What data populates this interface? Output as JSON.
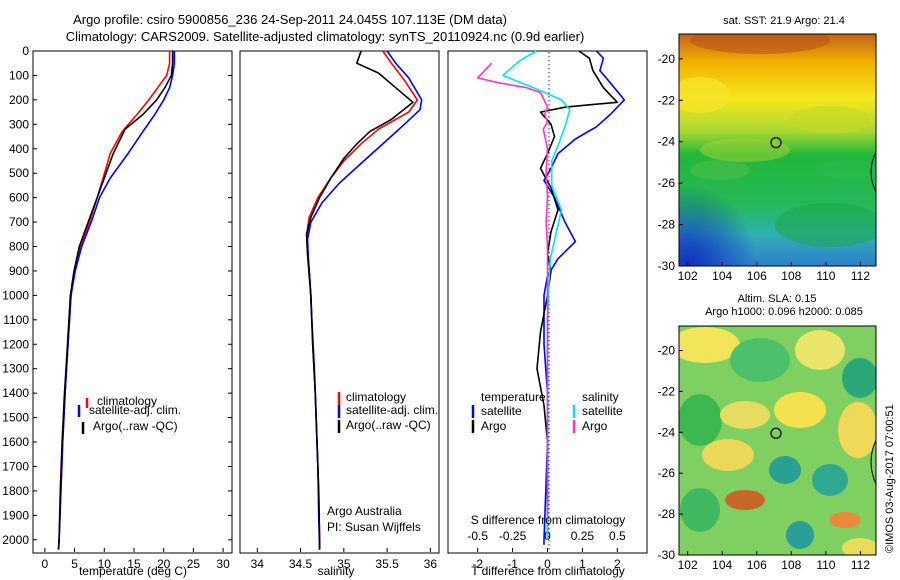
{
  "title": {
    "line1": "Argo profile: csiro 5900856_236 24-Sep-2011 24.045S 107.113E (DM data)",
    "line2": "Climatology: CARS2009. Satellite-adjusted climatology: synTS_20110924.nc (0.9d earlier)"
  },
  "colors": {
    "climatology": "#ff0000",
    "satellite": "#0000ff",
    "argo": "#000000",
    "salinity_sat": "#00e5ee",
    "salinity_argo": "#ff33cc"
  },
  "pressure_ticks": [
    "0",
    "100",
    "200",
    "300",
    "400",
    "500",
    "600",
    "700",
    "800",
    "900",
    "1000",
    "1100",
    "1200",
    "1300",
    "1400",
    "1500",
    "1600",
    "1700",
    "1800",
    "1900",
    "2000"
  ],
  "chart_data": [
    {
      "type": "line",
      "id": "temperature",
      "xlabel": "temperature (deg C)",
      "xlim": [
        -2,
        31.5
      ],
      "ylim": [
        2050,
        0
      ],
      "xticks": [
        "0",
        "5",
        "10",
        "15",
        "20",
        "25",
        "30"
      ],
      "legend": [
        "climatology",
        "satellite-adj. clim.",
        "Argo(..raw -QC)"
      ],
      "series": [
        {
          "name": "climatology",
          "color": "#ff0000",
          "points": [
            [
              21.0,
              0
            ],
            [
              21.0,
              50
            ],
            [
              20.5,
              100
            ],
            [
              19.0,
              150
            ],
            [
              17.5,
              200
            ],
            [
              15.5,
              260
            ],
            [
              13.0,
              330
            ],
            [
              11.0,
              420
            ],
            [
              9.8,
              520
            ],
            [
              8.8,
              600
            ],
            [
              7.5,
              700
            ],
            [
              6.0,
              800
            ],
            [
              5.0,
              900
            ],
            [
              4.4,
              1000
            ],
            [
              3.9,
              1200
            ],
            [
              3.4,
              1400
            ],
            [
              3.0,
              1600
            ],
            [
              2.7,
              1800
            ],
            [
              2.4,
              2000
            ],
            [
              2.3,
              2040
            ]
          ]
        },
        {
          "name": "satellite-adj. clim.",
          "color": "#0000ff",
          "points": [
            [
              21.8,
              0
            ],
            [
              21.8,
              50
            ],
            [
              21.5,
              100
            ],
            [
              21.0,
              150
            ],
            [
              20.0,
              200
            ],
            [
              18.5,
              260
            ],
            [
              16.5,
              330
            ],
            [
              14.0,
              420
            ],
            [
              11.0,
              520
            ],
            [
              9.2,
              600
            ],
            [
              7.8,
              700
            ],
            [
              6.2,
              800
            ],
            [
              5.1,
              900
            ],
            [
              4.4,
              1000
            ],
            [
              3.9,
              1200
            ],
            [
              3.4,
              1400
            ],
            [
              3.0,
              1600
            ],
            [
              2.7,
              1800
            ],
            [
              2.4,
              2000
            ],
            [
              2.3,
              2040
            ]
          ]
        },
        {
          "name": "Argo(..raw -QC)",
          "color": "#000000",
          "points": [
            [
              21.5,
              0
            ],
            [
              21.5,
              50
            ],
            [
              21.3,
              100
            ],
            [
              20.2,
              150
            ],
            [
              18.8,
              200
            ],
            [
              16.5,
              260
            ],
            [
              13.5,
              320
            ],
            [
              11.5,
              420
            ],
            [
              10.0,
              520
            ],
            [
              8.8,
              600
            ],
            [
              7.3,
              700
            ],
            [
              5.8,
              800
            ],
            [
              4.9,
              900
            ],
            [
              4.3,
              1000
            ],
            [
              3.8,
              1200
            ],
            [
              3.3,
              1400
            ],
            [
              2.9,
              1600
            ],
            [
              2.6,
              1800
            ],
            [
              2.4,
              2000
            ],
            [
              2.3,
              2040
            ]
          ]
        }
      ]
    },
    {
      "type": "line",
      "id": "salinity",
      "xlabel": "salinity",
      "xlim": [
        33.8,
        36.1
      ],
      "ylim": [
        2050,
        0
      ],
      "xticks": [
        "34",
        "34.5",
        "35",
        "35.5",
        "36"
      ],
      "legend": [
        "climatology",
        "satellite-adj. clim.",
        "Argo(..raw -QC)"
      ],
      "annotation": [
        "Argo Australia",
        "PI: Susan Wijffels"
      ],
      "series": [
        {
          "name": "climatology",
          "color": "#ff0000",
          "points": [
            [
              35.45,
              0
            ],
            [
              35.55,
              50
            ],
            [
              35.7,
              120
            ],
            [
              35.85,
              200
            ],
            [
              35.75,
              250
            ],
            [
              35.6,
              280
            ],
            [
              35.4,
              320
            ],
            [
              35.2,
              380
            ],
            [
              35.0,
              450
            ],
            [
              34.85,
              520
            ],
            [
              34.7,
              600
            ],
            [
              34.6,
              680
            ],
            [
              34.57,
              750
            ],
            [
              34.58,
              820
            ],
            [
              34.6,
              900
            ],
            [
              34.62,
              1000
            ],
            [
              34.64,
              1200
            ],
            [
              34.67,
              1400
            ],
            [
              34.69,
              1600
            ],
            [
              34.71,
              1800
            ],
            [
              34.72,
              2000
            ],
            [
              34.72,
              2040
            ]
          ]
        },
        {
          "name": "satellite-adj. clim.",
          "color": "#0000ff",
          "points": [
            [
              35.5,
              0
            ],
            [
              35.6,
              50
            ],
            [
              35.75,
              110
            ],
            [
              35.9,
              200
            ],
            [
              35.88,
              240
            ],
            [
              35.7,
              300
            ],
            [
              35.45,
              380
            ],
            [
              35.2,
              460
            ],
            [
              34.95,
              540
            ],
            [
              34.75,
              620
            ],
            [
              34.62,
              700
            ],
            [
              34.58,
              770
            ],
            [
              34.59,
              850
            ],
            [
              34.61,
              950
            ],
            [
              34.63,
              1100
            ],
            [
              34.66,
              1300
            ],
            [
              34.68,
              1500
            ],
            [
              34.7,
              1700
            ],
            [
              34.71,
              1900
            ],
            [
              34.72,
              2040
            ]
          ]
        },
        {
          "name": "Argo(..raw -QC)",
          "color": "#000000",
          "points": [
            [
              35.2,
              0
            ],
            [
              35.15,
              50
            ],
            [
              35.4,
              90
            ],
            [
              35.6,
              150
            ],
            [
              35.8,
              210
            ],
            [
              35.55,
              280
            ],
            [
              35.3,
              330
            ],
            [
              35.15,
              380
            ],
            [
              35.0,
              440
            ],
            [
              34.85,
              520
            ],
            [
              34.72,
              600
            ],
            [
              34.62,
              680
            ],
            [
              34.57,
              750
            ],
            [
              34.58,
              830
            ],
            [
              34.6,
              920
            ],
            [
              34.62,
              1000
            ],
            [
              34.64,
              1200
            ],
            [
              34.67,
              1400
            ],
            [
              34.69,
              1600
            ],
            [
              34.71,
              1800
            ],
            [
              34.72,
              2000
            ],
            [
              34.72,
              2040
            ]
          ]
        }
      ]
    },
    {
      "type": "line",
      "id": "difference",
      "xlabel": "T difference from climatology",
      "xlabel_top": "S difference from climatology",
      "xlim": [
        -2.85,
        2.85
      ],
      "ylim": [
        2050,
        0
      ],
      "xticks": [
        "-2",
        "-1",
        "0",
        "1",
        "2"
      ],
      "xticks_top": [
        "-0.5",
        "-0.25",
        "0",
        "0.25",
        "0.5"
      ],
      "legend_title_left": "temperature",
      "legend_title_right": "salinity",
      "legend_left": [
        "satellite",
        "Argo"
      ],
      "legend_right": [
        "satellite",
        "Argo"
      ],
      "series": [
        {
          "name": "temperature satellite",
          "color": "#0000ff",
          "points": [
            [
              1.4,
              0
            ],
            [
              1.6,
              30
            ],
            [
              1.5,
              80
            ],
            [
              1.8,
              130
            ],
            [
              2.2,
              200
            ],
            [
              1.8,
              260
            ],
            [
              1.4,
              310
            ],
            [
              0.8,
              360
            ],
            [
              0.3,
              420
            ],
            [
              0.1,
              480
            ],
            [
              -0.1,
              530
            ],
            [
              0.2,
              600
            ],
            [
              0.5,
              700
            ],
            [
              0.8,
              780
            ],
            [
              0.3,
              850
            ],
            [
              0.0,
              920
            ],
            [
              -0.1,
              1000
            ],
            [
              -0.1,
              1200
            ],
            [
              0.0,
              1400
            ],
            [
              0.0,
              1600
            ],
            [
              -0.05,
              1800
            ],
            [
              -0.1,
              2000
            ],
            [
              -0.1,
              2020
            ]
          ]
        },
        {
          "name": "temperature Argo",
          "color": "#000000",
          "points": [
            [
              0.9,
              0
            ],
            [
              1.2,
              30
            ],
            [
              1.3,
              80
            ],
            [
              1.6,
              150
            ],
            [
              2.0,
              210
            ],
            [
              1.2,
              220
            ],
            [
              0.5,
              230
            ],
            [
              -0.2,
              250
            ],
            [
              0.1,
              300
            ],
            [
              0.2,
              350
            ],
            [
              0.0,
              420
            ],
            [
              -0.2,
              480
            ],
            [
              0.1,
              560
            ],
            [
              0.3,
              650
            ],
            [
              0.1,
              740
            ],
            [
              0.0,
              830
            ],
            [
              0.1,
              900
            ],
            [
              0.0,
              1000
            ],
            [
              -0.2,
              1150
            ],
            [
              -0.3,
              1300
            ],
            [
              -0.1,
              1450
            ],
            [
              0.0,
              1600
            ],
            [
              0.0,
              1800
            ],
            [
              0.0,
              2000
            ]
          ]
        },
        {
          "name": "salinity satellite",
          "color": "#00e5ee",
          "points": [
            [
              -0.08,
              0
            ],
            [
              -0.2,
              40
            ],
            [
              -0.32,
              100
            ],
            [
              -0.1,
              150
            ],
            [
              0.1,
              200
            ],
            [
              0.16,
              240
            ],
            [
              0.13,
              300
            ],
            [
              0.08,
              380
            ],
            [
              0.03,
              450
            ],
            [
              0.03,
              550
            ],
            [
              0.1,
              650
            ],
            [
              0.06,
              750
            ],
            [
              0.02,
              850
            ],
            [
              0.01,
              950
            ],
            [
              0.0,
              1100
            ],
            [
              0.0,
              1300
            ],
            [
              0.0,
              1500
            ],
            [
              0.0,
              1800
            ],
            [
              0.0,
              2000
            ]
          ]
        },
        {
          "name": "salinity Argo",
          "color": "#ff33cc",
          "points": [
            [
              -0.4,
              50
            ],
            [
              -0.45,
              80
            ],
            [
              -0.5,
              110
            ],
            [
              -0.35,
              130
            ],
            [
              -0.15,
              150
            ],
            [
              -0.05,
              170
            ],
            [
              0.0,
              230
            ],
            [
              -0.02,
              260
            ],
            [
              0.0,
              290
            ],
            [
              -0.03,
              320
            ],
            [
              0.0,
              400
            ],
            [
              -0.01,
              500
            ],
            [
              0.0,
              600
            ],
            [
              -0.01,
              700
            ],
            [
              0.0,
              800
            ],
            [
              0.0,
              1000
            ],
            [
              0.0,
              1200
            ],
            [
              0.0,
              1500
            ],
            [
              0.0,
              1800
            ],
            [
              0.0,
              1900
            ]
          ]
        }
      ]
    },
    {
      "type": "heatmap",
      "id": "sst-map",
      "title": "sat. SST: 21.9 Argo: 21.4",
      "xlim": [
        101.5,
        112.9
      ],
      "ylim": [
        -30,
        -18.8
      ],
      "xticks": [
        "102",
        "104",
        "106",
        "108",
        "110",
        "112"
      ],
      "yticks": [
        "-20",
        "-22",
        "-24",
        "-26",
        "-28",
        "-30"
      ],
      "marker": [
        107.113,
        -24.045
      ]
    },
    {
      "type": "heatmap",
      "id": "sla-map",
      "title": "Altim. SLA: 0.15",
      "subtitle": "Argo h1000: 0.096 h2000: 0.085",
      "xlim": [
        101.5,
        112.9
      ],
      "ylim": [
        -30,
        -18.8
      ],
      "xticks": [
        "102",
        "104",
        "106",
        "108",
        "110",
        "112"
      ],
      "yticks": [
        "-20",
        "-22",
        "-24",
        "-26",
        "-28",
        "-30"
      ],
      "marker": [
        107.113,
        -24.045
      ]
    }
  ],
  "watermark": "©IMOS 03-Aug-2017 07:00:51"
}
